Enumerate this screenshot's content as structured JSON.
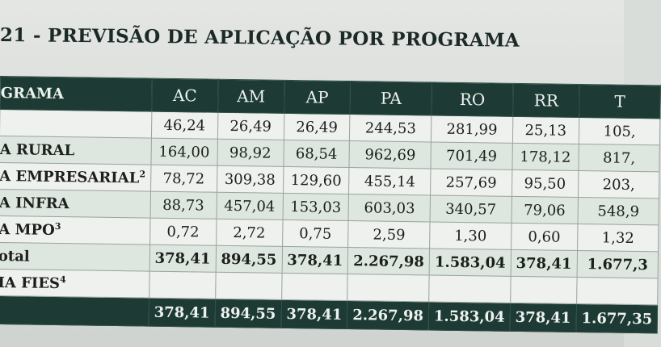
{
  "title": "21 - PREVISÃO DE APLICAÇÃO POR PROGRAMA",
  "header": {
    "program_label": "GRAMA",
    "states": [
      "AC",
      "AM",
      "AP",
      "PA",
      "RO",
      "RR",
      "T"
    ]
  },
  "rows": [
    {
      "label": "",
      "sup": "",
      "values": [
        "46,24",
        "26,49",
        "26,49",
        "244,53",
        "281,99",
        "25,13",
        "105,"
      ]
    },
    {
      "label": "A RURAL",
      "sup": "",
      "values": [
        "164,00",
        "98,92",
        "68,54",
        "962,69",
        "701,49",
        "178,12",
        "817,"
      ]
    },
    {
      "label": "A EMPRESARIAL",
      "sup": "2",
      "values": [
        "78,72",
        "309,38",
        "129,60",
        "455,14",
        "257,69",
        "95,50",
        "203,"
      ]
    },
    {
      "label": "A INFRA",
      "sup": "",
      "values": [
        "88,73",
        "457,04",
        "153,03",
        "603,03",
        "340,57",
        "79,06",
        "548,9"
      ]
    },
    {
      "label": "A MPO",
      "sup": "3",
      "values": [
        "0,72",
        "2,72",
        "0,75",
        "2,59",
        "1,30",
        "0,60",
        "1,32"
      ]
    },
    {
      "label": "otal",
      "sup": "",
      "values": [
        "378,41",
        "894,55",
        "378,41",
        "2.267,98",
        "1.583,04",
        "378,41",
        "1.677,3"
      ]
    },
    {
      "label": "IA FIES",
      "sup": "4",
      "values": [
        "",
        "",
        "",
        "",
        "",
        "",
        ""
      ]
    }
  ],
  "grand_total": {
    "label": "",
    "values": [
      "378,41",
      "894,55",
      "378,41",
      "2.267,98",
      "1.583,04",
      "378,41",
      "1.677,35"
    ]
  }
}
